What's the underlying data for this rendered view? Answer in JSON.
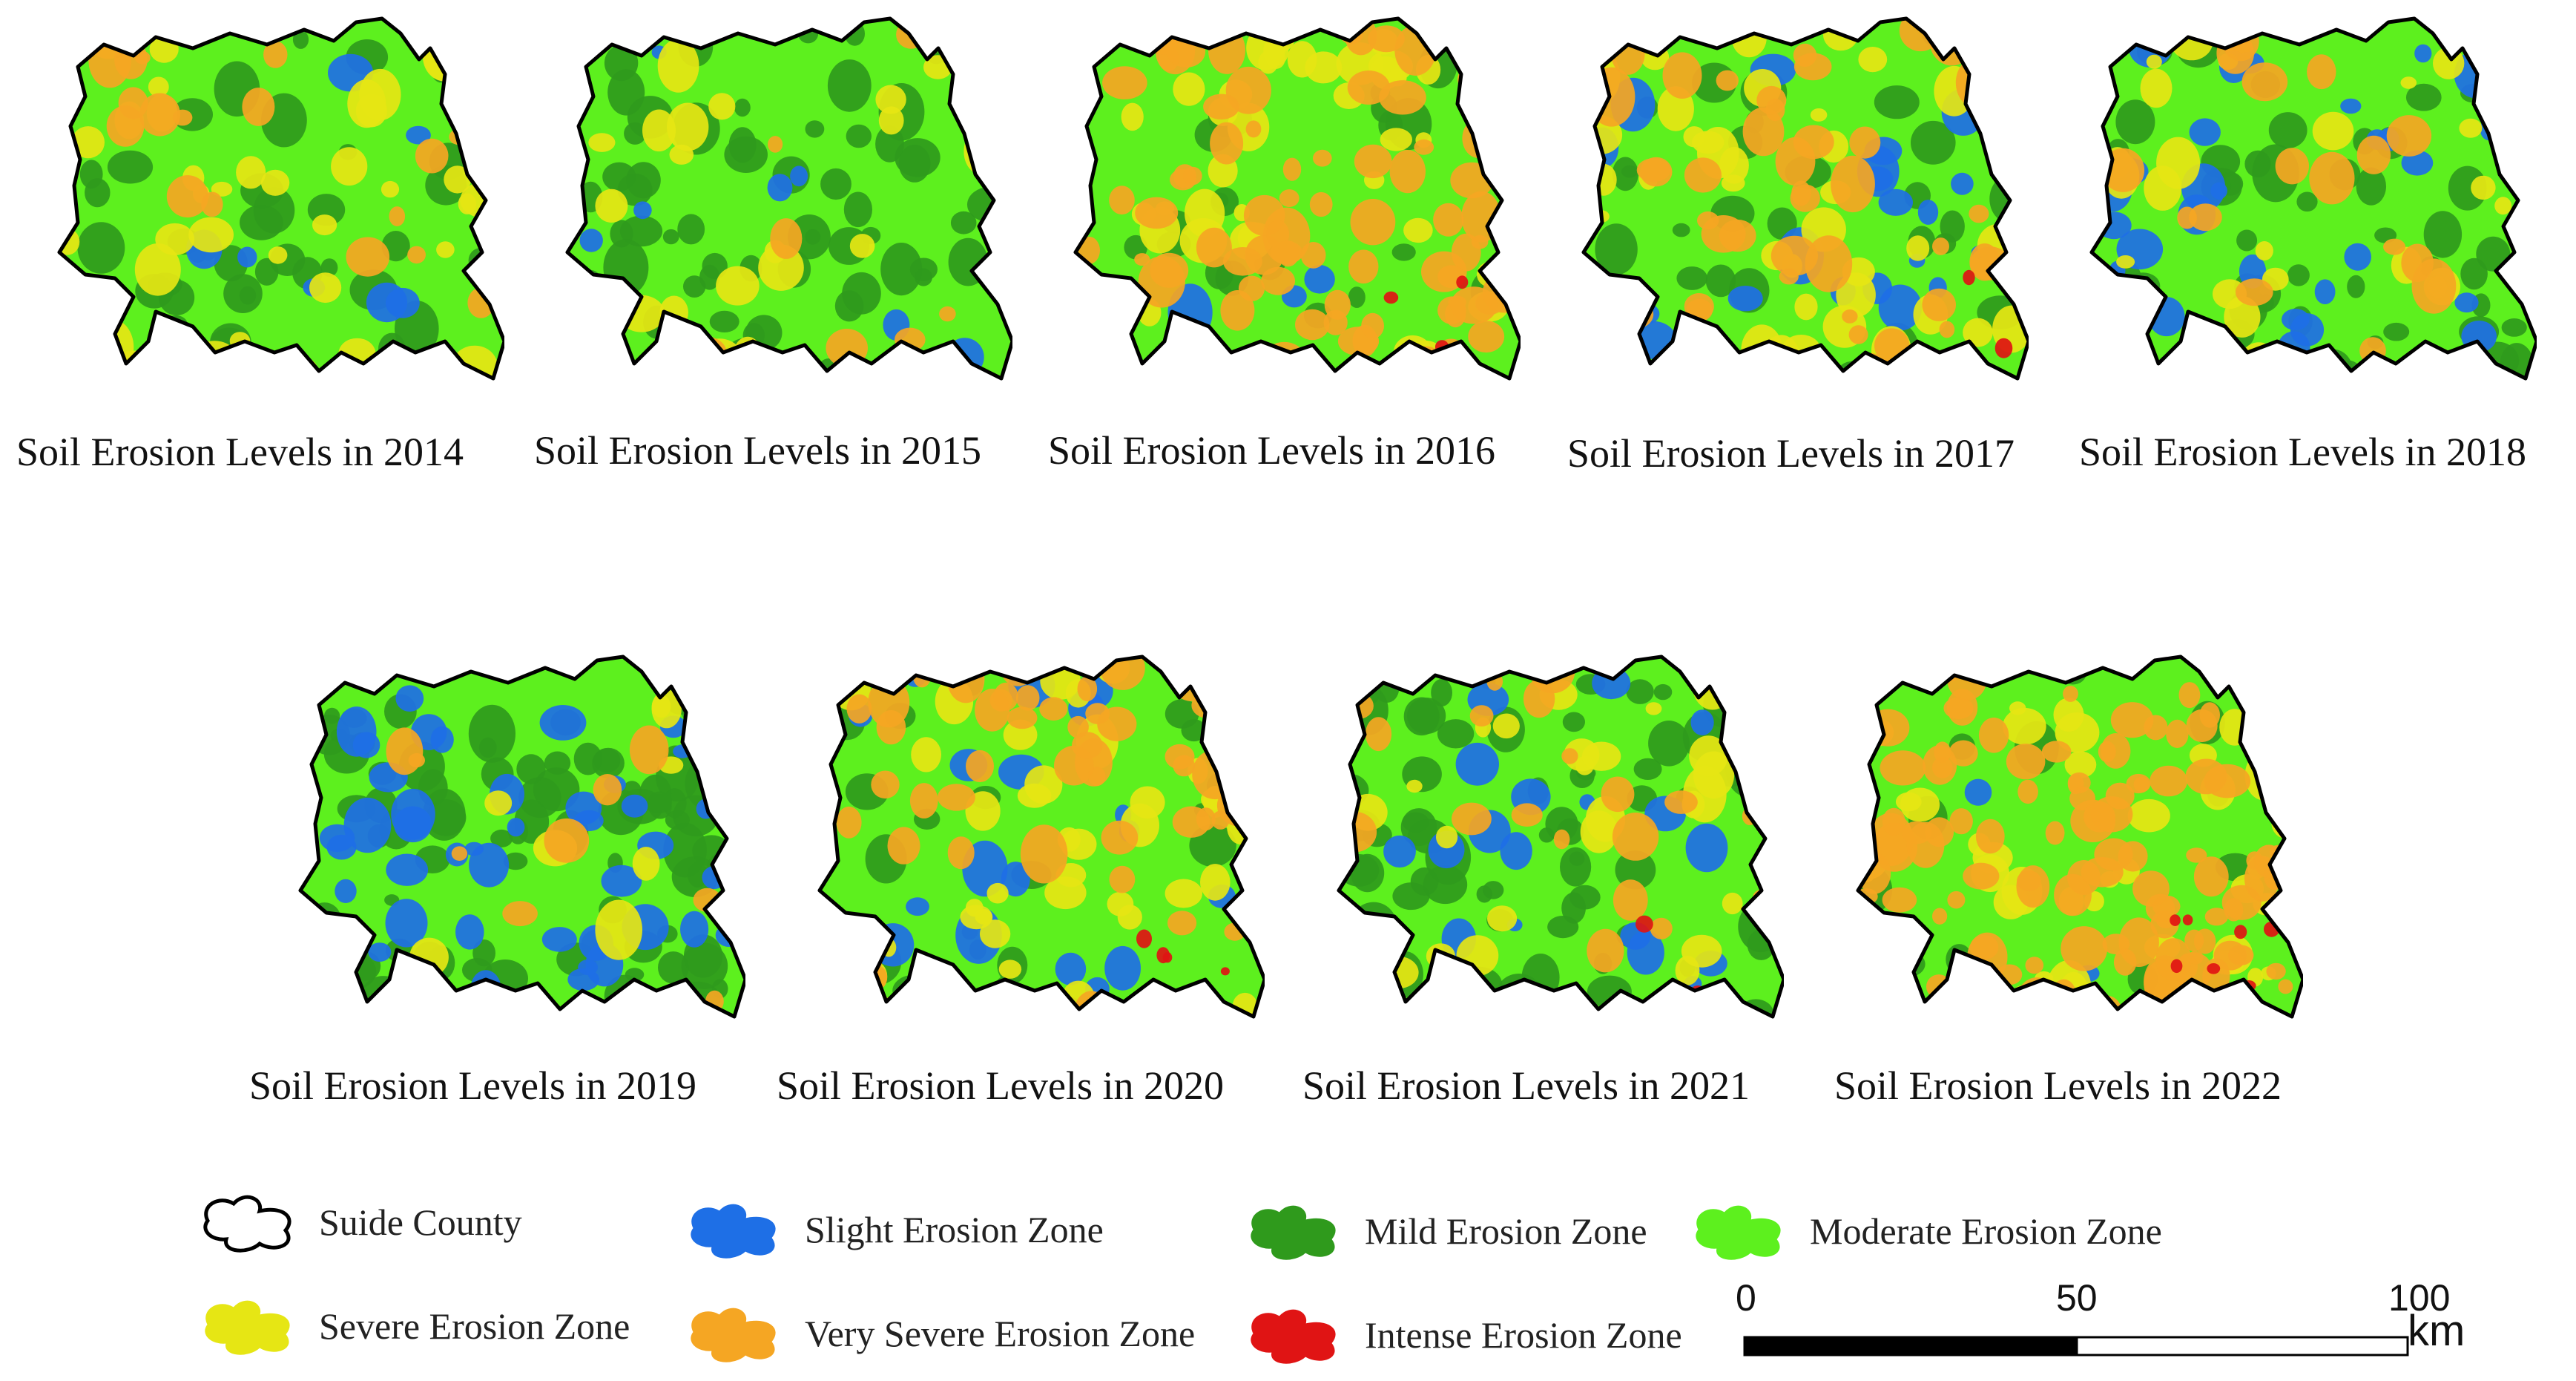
{
  "figure": {
    "region": "Suide County",
    "zone_colors": {
      "slight": "#1e6fe6",
      "mild": "#2f9a1c",
      "moderate": "#5df01e",
      "severe": "#e6e614",
      "very_severe": "#f5a623",
      "intense": "#e01414"
    },
    "maps": [
      {
        "caption": "Soil Erosion Levels in 2014",
        "composition": {
          "slight": 0.03,
          "mild": 0.22,
          "moderate": 0.45,
          "severe": 0.22,
          "very_severe": 0.08,
          "intense": 0.0
        }
      },
      {
        "caption": "Soil Erosion Levels in 2015",
        "composition": {
          "slight": 0.03,
          "mild": 0.28,
          "moderate": 0.55,
          "severe": 0.09,
          "very_severe": 0.05,
          "intense": 0.0
        }
      },
      {
        "caption": "Soil Erosion Levels in 2016",
        "composition": {
          "slight": 0.02,
          "mild": 0.1,
          "moderate": 0.3,
          "severe": 0.2,
          "very_severe": 0.36,
          "intense": 0.02
        }
      },
      {
        "caption": "Soil Erosion Levels in 2017",
        "composition": {
          "slight": 0.1,
          "mild": 0.15,
          "moderate": 0.35,
          "severe": 0.2,
          "very_severe": 0.19,
          "intense": 0.01
        }
      },
      {
        "caption": "Soil Erosion Levels in 2018",
        "composition": {
          "slight": 0.15,
          "mild": 0.25,
          "moderate": 0.4,
          "severe": 0.12,
          "very_severe": 0.08,
          "intense": 0.0
        }
      },
      {
        "caption": "Soil Erosion Levels in 2019",
        "composition": {
          "slight": 0.2,
          "mild": 0.38,
          "moderate": 0.32,
          "severe": 0.06,
          "very_severe": 0.04,
          "intense": 0.0
        }
      },
      {
        "caption": "Soil Erosion Levels in 2020",
        "composition": {
          "slight": 0.1,
          "mild": 0.1,
          "moderate": 0.35,
          "severe": 0.18,
          "very_severe": 0.25,
          "intense": 0.02
        }
      },
      {
        "caption": "Soil Erosion Levels in 2021",
        "composition": {
          "slight": 0.08,
          "mild": 0.3,
          "moderate": 0.4,
          "severe": 0.12,
          "very_severe": 0.09,
          "intense": 0.01
        }
      },
      {
        "caption": "Soil Erosion Levels in 2022",
        "composition": {
          "slight": 0.01,
          "mild": 0.06,
          "moderate": 0.2,
          "severe": 0.2,
          "very_severe": 0.5,
          "intense": 0.03
        }
      }
    ]
  },
  "legend": {
    "items": [
      {
        "label": "Suide County",
        "swatch": "outline",
        "color": "#ffffff"
      },
      {
        "label": "Slight Erosion Zone",
        "swatch": "fill",
        "color": "#1e6fe6"
      },
      {
        "label": "Mild Erosion Zone",
        "swatch": "fill",
        "color": "#2f9a1c"
      },
      {
        "label": "Moderate Erosion Zone",
        "swatch": "fill",
        "color": "#5df01e"
      },
      {
        "label": "Severe Erosion Zone",
        "swatch": "fill",
        "color": "#e6e614"
      },
      {
        "label": "Very Severe Erosion Zone",
        "swatch": "fill",
        "color": "#f5a623"
      },
      {
        "label": "Intense Erosion Zone",
        "swatch": "fill",
        "color": "#e01414"
      }
    ]
  },
  "scale_bar": {
    "ticks": [
      "0",
      "50",
      "100"
    ],
    "unit": "km"
  }
}
